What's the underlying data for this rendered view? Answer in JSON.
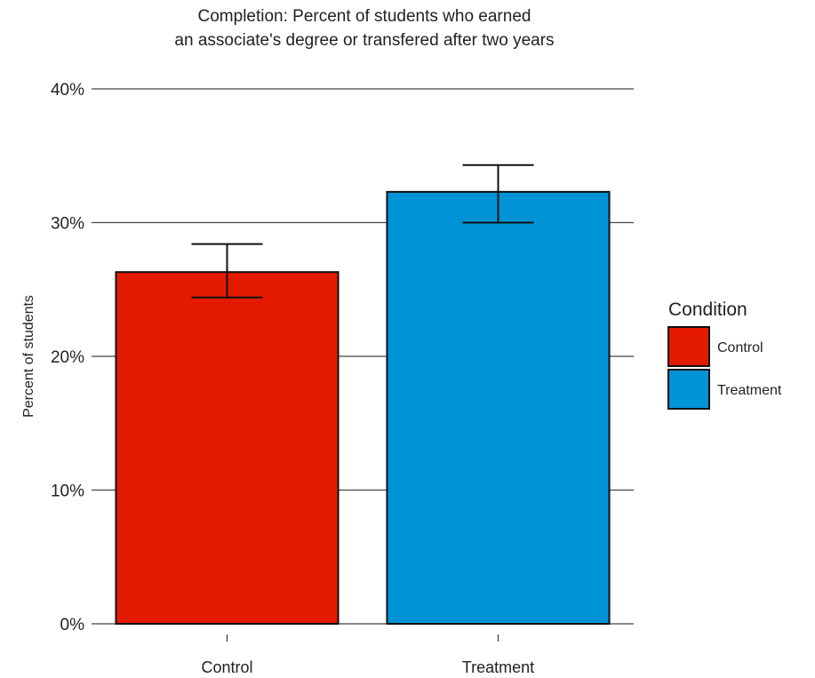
{
  "chart_data": {
    "type": "bar",
    "title": [
      "Completion: Percent of students who earned",
      "an associate's degree or transfered after two years"
    ],
    "xlabel": "",
    "ylabel": "Percent of students",
    "categories": [
      "Control",
      "Treatment"
    ],
    "values": [
      26.3,
      32.3
    ],
    "error_low": [
      24.4,
      30.0
    ],
    "error_high": [
      28.4,
      34.3
    ],
    "ylim": [
      0,
      40
    ],
    "yticks": [
      0,
      10,
      20,
      30,
      40
    ],
    "ytick_labels": [
      "0%",
      "10%",
      "20%",
      "30%",
      "40%"
    ],
    "grid": true,
    "legend": {
      "title": "Condition",
      "position": "right",
      "items": [
        "Control",
        "Treatment"
      ]
    },
    "colors": [
      "#e31a00",
      "#0094d6"
    ]
  }
}
